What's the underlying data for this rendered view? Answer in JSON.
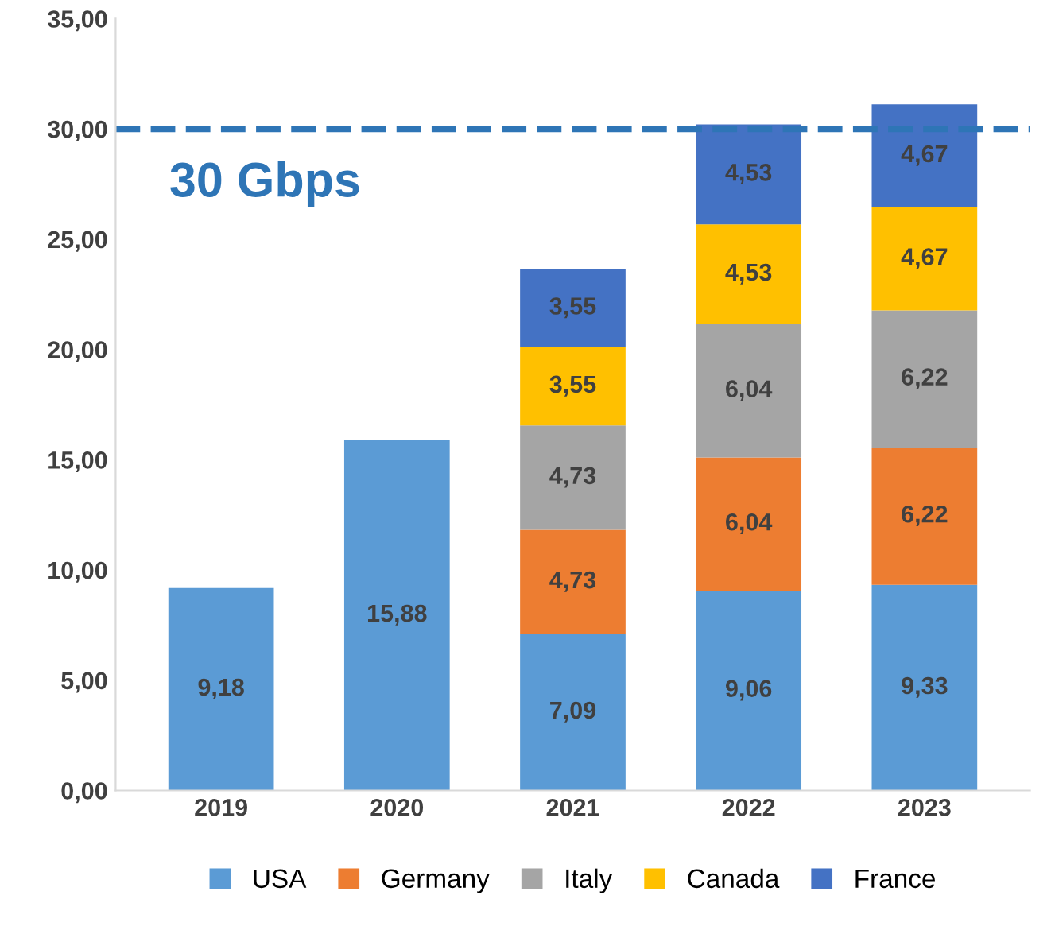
{
  "chart_data": {
    "type": "bar",
    "stacked": true,
    "categories": [
      "2019",
      "2020",
      "2021",
      "2022",
      "2023"
    ],
    "series": [
      {
        "name": "USA",
        "color": "#5b9bd5",
        "values": [
          9.18,
          15.88,
          7.09,
          9.06,
          9.33
        ],
        "value_labels": [
          "9,18",
          "15,88",
          "7,09",
          "9,06",
          "9,33"
        ]
      },
      {
        "name": "Germany",
        "color": "#ed7d31",
        "values": [
          null,
          null,
          4.73,
          6.04,
          6.22
        ],
        "value_labels": [
          null,
          null,
          "4,73",
          "6,04",
          "6,22"
        ]
      },
      {
        "name": "Italy",
        "color": "#a5a5a5",
        "values": [
          null,
          null,
          4.73,
          6.04,
          6.22
        ],
        "value_labels": [
          null,
          null,
          "4,73",
          "6,04",
          "6,22"
        ]
      },
      {
        "name": "Canada",
        "color": "#ffc000",
        "values": [
          null,
          null,
          3.55,
          4.53,
          4.67
        ],
        "value_labels": [
          null,
          null,
          "3,55",
          "4,53",
          "4,67"
        ]
      },
      {
        "name": "France",
        "color": "#4472c4",
        "values": [
          null,
          null,
          3.55,
          4.53,
          4.67
        ],
        "value_labels": [
          null,
          null,
          "3,55",
          "4,53",
          "4,67"
        ]
      }
    ],
    "ylim": [
      0,
      35
    ],
    "yticks": [
      {
        "value": 0,
        "label": "0,00"
      },
      {
        "value": 5,
        "label": "5,00"
      },
      {
        "value": 10,
        "label": "10,00"
      },
      {
        "value": 15,
        "label": "15,00"
      },
      {
        "value": 20,
        "label": "20,00"
      },
      {
        "value": 25,
        "label": "25,00"
      },
      {
        "value": 30,
        "label": "30,00"
      },
      {
        "value": 35,
        "label": "35,00"
      }
    ],
    "ref_lines": [
      {
        "axis": "y",
        "value": 30,
        "label": "30 Gbps",
        "color": "#2e75b6",
        "line_style": "dashed"
      }
    ],
    "grid": false,
    "legend": "bottom"
  }
}
